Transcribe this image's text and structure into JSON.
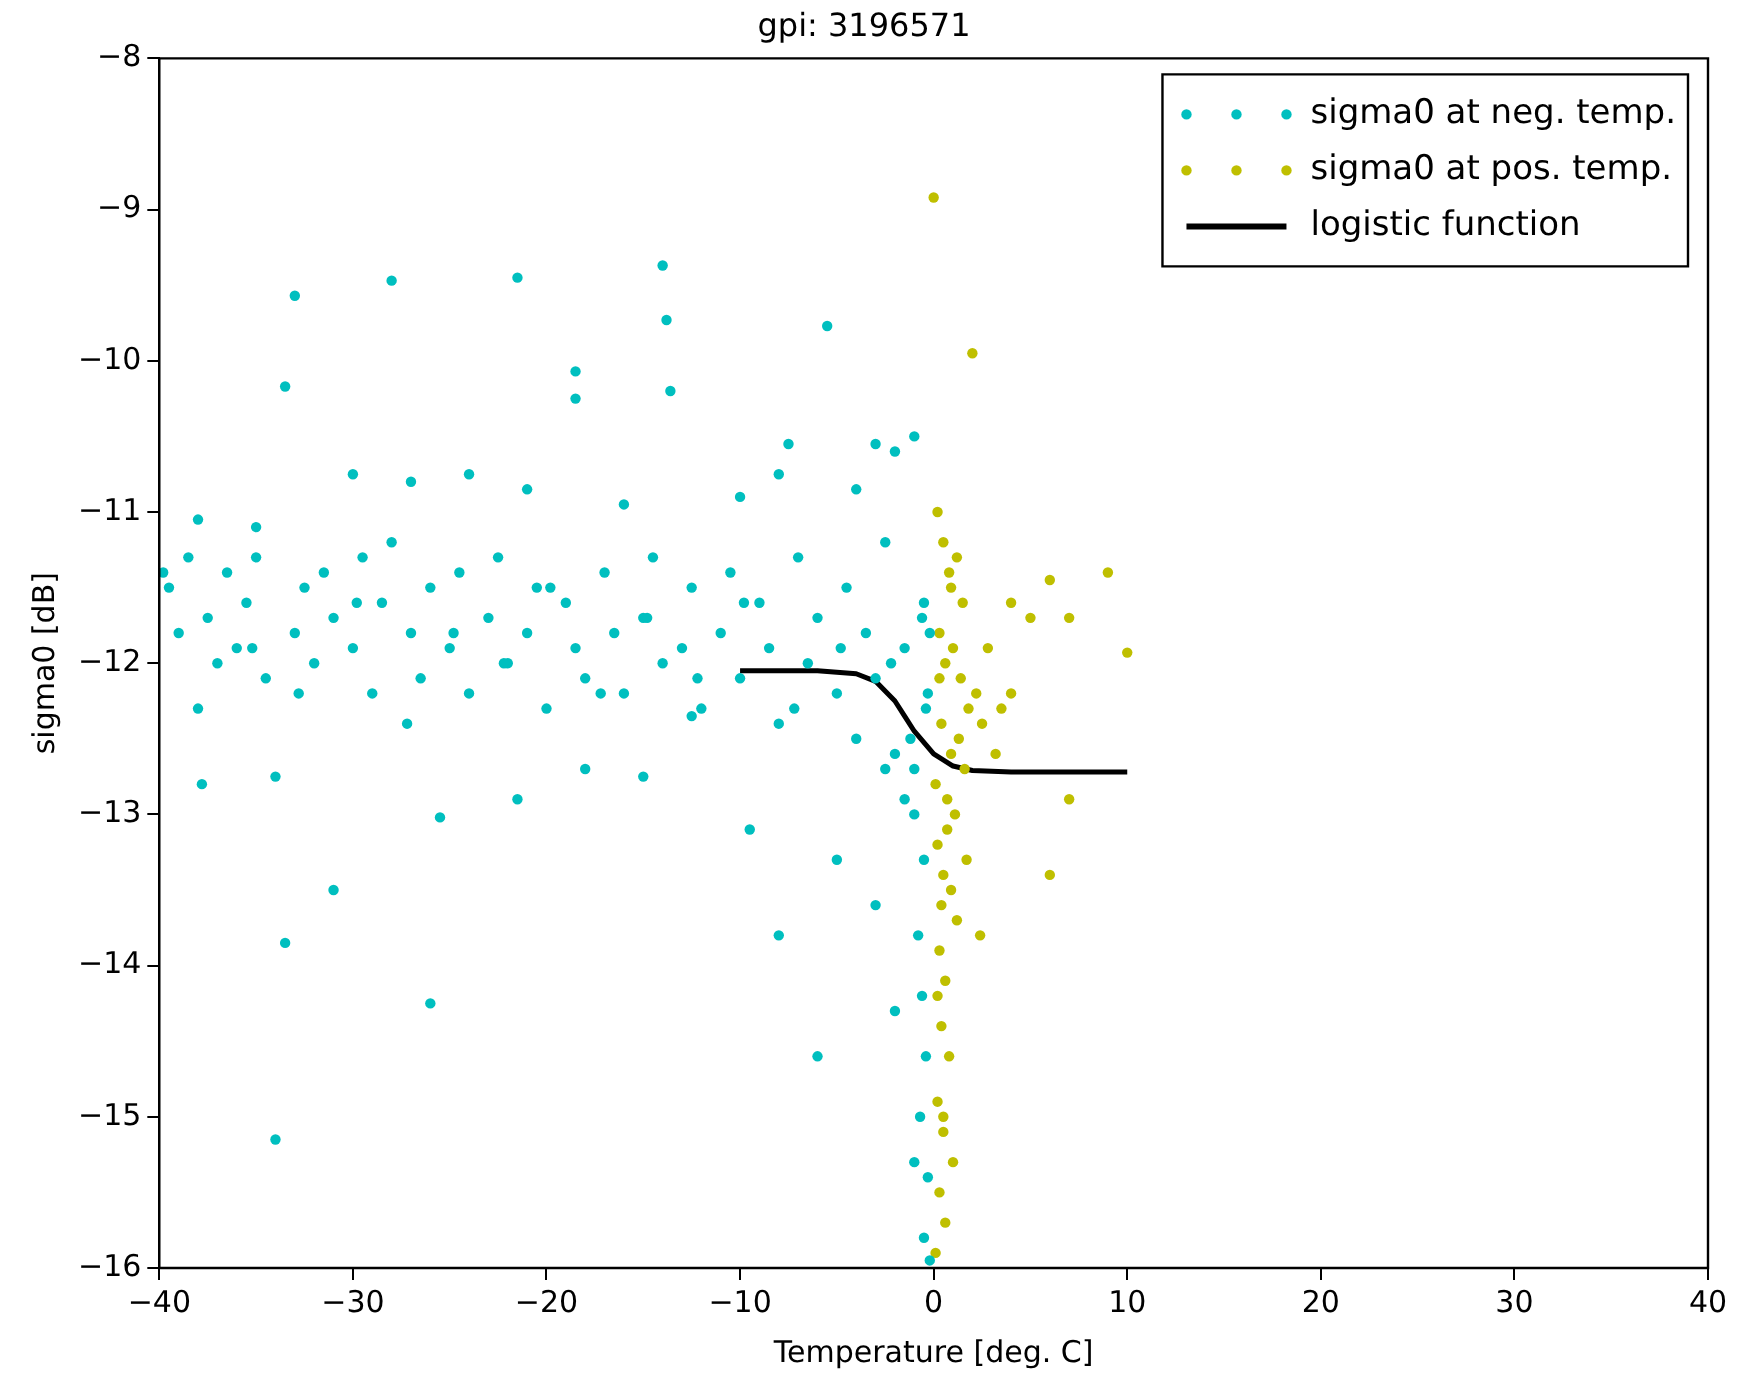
{
  "chart_data": {
    "type": "scatter",
    "title": "gpi: 3196571",
    "xlabel": "Temperature [deg. C]",
    "ylabel": "sigma0 [dB]",
    "xlim": [
      -40,
      40
    ],
    "ylim": [
      -16,
      -8
    ],
    "xticks": [
      -40,
      -30,
      -20,
      -10,
      0,
      10,
      20,
      30,
      40
    ],
    "yticks": [
      -16,
      -15,
      -14,
      -13,
      -12,
      -11,
      -10,
      -9,
      -8
    ],
    "grid": false,
    "legend": "top right",
    "marker": "circle",
    "series": [
      {
        "name": "sigma0 at neg. temp.",
        "color": "#00bfbf",
        "x": [
          -33,
          -28,
          -21.5,
          -14,
          -13.8,
          -5.5,
          -33.5,
          -18.5,
          -18.5,
          -13.6,
          -7.5,
          -34,
          -26,
          -33.5,
          -31,
          -25.5,
          -6,
          -8,
          -3,
          -2,
          -1,
          -5,
          -9.5,
          -21.5,
          -34,
          -38,
          -18,
          -15,
          -12.5,
          -38,
          -35,
          -30,
          -27,
          -24,
          -21,
          -16,
          -10,
          -8,
          -4,
          -2,
          -1,
          -3,
          -0.5,
          -0.8,
          -0.6,
          -0.4,
          -0.7,
          -0.3,
          -0.5,
          -0.2,
          -1,
          -1.5,
          -2.5,
          -1.2,
          -39.5,
          -39,
          -38.5,
          -37.5,
          -37,
          -36.5,
          -36,
          -35.5,
          -35,
          -34.5,
          -33,
          -32.5,
          -32,
          -31.5,
          -31,
          -30,
          -29.5,
          -29,
          -28.5,
          -28,
          -27,
          -26.5,
          -26,
          -25,
          -24.5,
          -24,
          -23,
          -22.5,
          -22,
          -21,
          -20.5,
          -20,
          -19,
          -18.5,
          -18,
          -17,
          -16.5,
          -16,
          -15,
          -14.5,
          -14,
          -13,
          -12.5,
          -12,
          -11,
          -10.5,
          -10,
          -9,
          -8.5,
          -8,
          -7,
          -6.5,
          -6,
          -5,
          -4.5,
          -4,
          -3.5,
          -3,
          -2.5,
          -2,
          -1.5,
          -1,
          -0.5,
          -0.3,
          -39.8,
          -37.8,
          -35.2,
          -32.8,
          -29.8,
          -27.2,
          -24.8,
          -22.2,
          -19.8,
          -17.2,
          -14.8,
          -12.2,
          -9.8,
          -7.2,
          -4.8,
          -2.2,
          -0.6,
          -0.4,
          -0.2
        ],
        "values": [
          -9.57,
          -9.47,
          -9.45,
          -9.37,
          -9.73,
          -9.77,
          -10.17,
          -10.07,
          -10.25,
          -10.2,
          -10.55,
          -15.15,
          -14.25,
          -13.85,
          -13.5,
          -13.02,
          -14.6,
          -13.8,
          -13.6,
          -14.3,
          -15.3,
          -13.3,
          -13.1,
          -12.9,
          -12.75,
          -12.3,
          -12.7,
          -12.75,
          -12.35,
          -11.05,
          -11.1,
          -10.75,
          -10.8,
          -10.75,
          -10.85,
          -10.95,
          -10.9,
          -10.75,
          -10.85,
          -10.6,
          -10.5,
          -10.55,
          -13.3,
          -13.8,
          -14.2,
          -14.6,
          -15.0,
          -15.4,
          -15.8,
          -15.95,
          -13.0,
          -12.9,
          -12.7,
          -12.5,
          -11.5,
          -11.8,
          -11.3,
          -11.7,
          -12.0,
          -11.4,
          -11.9,
          -11.6,
          -11.3,
          -12.1,
          -11.8,
          -11.5,
          -12.0,
          -11.4,
          -11.7,
          -11.9,
          -11.3,
          -12.2,
          -11.6,
          -11.2,
          -11.8,
          -12.1,
          -11.5,
          -11.9,
          -11.4,
          -12.2,
          -11.7,
          -11.3,
          -12.0,
          -11.8,
          -11.5,
          -12.3,
          -11.6,
          -11.9,
          -12.1,
          -11.4,
          -11.8,
          -12.2,
          -11.7,
          -11.3,
          -12.0,
          -11.9,
          -11.5,
          -12.3,
          -11.8,
          -11.4,
          -12.1,
          -11.6,
          -11.9,
          -12.4,
          -11.3,
          -12.0,
          -11.7,
          -12.2,
          -11.5,
          -12.5,
          -11.8,
          -12.1,
          -11.2,
          -12.6,
          -11.9,
          -12.7,
          -11.6,
          -12.2,
          -11.4,
          -12.8,
          -11.9,
          -12.2,
          -11.6,
          -12.4,
          -11.8,
          -12.0,
          -11.5,
          -12.2,
          -11.7,
          -12.1,
          -11.6,
          -12.3,
          -11.9,
          -12.0,
          -11.7,
          -12.3,
          -11.8
        ]
      },
      {
        "name": "sigma0 at pos. temp.",
        "color": "#bfbf00",
        "x": [
          0,
          2,
          9,
          10,
          7,
          5,
          6,
          4,
          6,
          7,
          4,
          2.5,
          0.2,
          0.5,
          0.8,
          1.2,
          1.5,
          0.3,
          0.6,
          1,
          1.4,
          1.8,
          2.2,
          0.4,
          0.9,
          1.3,
          0.1,
          0.7,
          1.1,
          1.6,
          0.2,
          0.5,
          0.9,
          1.2,
          0.3,
          0.6,
          0.4,
          0.8,
          0.2,
          0.5,
          1.0,
          0.3,
          0.6,
          0.1,
          0.4,
          0.7,
          0.2,
          0.5,
          0.3,
          2.8,
          3.2,
          1.7,
          2.4,
          3.5,
          0.9
        ],
        "values": [
          -8.92,
          -9.95,
          -11.4,
          -11.93,
          -11.7,
          -11.7,
          -11.45,
          -11.6,
          -13.4,
          -12.9,
          -12.2,
          -12.4,
          -11.0,
          -11.2,
          -11.4,
          -11.3,
          -11.6,
          -11.8,
          -12.0,
          -11.9,
          -12.1,
          -12.3,
          -12.2,
          -12.4,
          -12.6,
          -12.5,
          -12.8,
          -12.9,
          -13.0,
          -12.7,
          -13.2,
          -13.4,
          -13.5,
          -13.7,
          -13.9,
          -14.1,
          -14.4,
          -14.6,
          -14.9,
          -15.1,
          -15.3,
          -15.5,
          -15.7,
          -15.9,
          -13.6,
          -13.1,
          -14.2,
          -15.0,
          -12.1,
          -11.9,
          -12.6,
          -13.3,
          -13.8,
          -12.3,
          -11.5
        ]
      },
      {
        "name": "logistic function",
        "type": "line",
        "color": "#000000",
        "marker": "none",
        "line_style": "solid",
        "x": [
          -10,
          -6,
          -4,
          -3,
          -2,
          -1.5,
          -1,
          0,
          1,
          2,
          4,
          10
        ],
        "values": [
          -12.05,
          -12.05,
          -12.07,
          -12.12,
          -12.25,
          -12.35,
          -12.45,
          -12.6,
          -12.68,
          -12.71,
          -12.72,
          -12.72
        ]
      }
    ]
  }
}
